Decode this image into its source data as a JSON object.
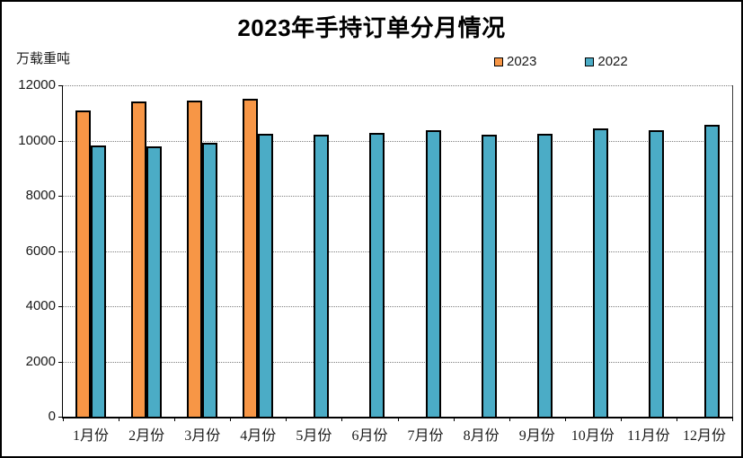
{
  "chart_data": {
    "type": "bar",
    "title": "2023年手持订单分月情况",
    "ylabel": "万载重吨",
    "xlabel": "",
    "categories": [
      "1月份",
      "2月份",
      "3月份",
      "4月份",
      "5月份",
      "6月份",
      "7月份",
      "8月份",
      "9月份",
      "10月份",
      "11月份",
      "12月份"
    ],
    "series": [
      {
        "name": "2023",
        "color": "#F79646",
        "values": [
          11100,
          11400,
          11450,
          11510,
          null,
          null,
          null,
          null,
          null,
          null,
          null,
          null
        ]
      },
      {
        "name": "2022",
        "color": "#4BACC6",
        "values": [
          9830,
          9780,
          9930,
          10250,
          10200,
          10270,
          10370,
          10210,
          10260,
          10430,
          10370,
          10560
        ]
      }
    ],
    "ylim": [
      0,
      12000
    ],
    "yticks": [
      0,
      2000,
      4000,
      6000,
      8000,
      10000,
      12000
    ],
    "grid": "horizontal-dotted",
    "legend_position": "top-right",
    "colors": {
      "bar_border": "#000000",
      "axis": "#000000",
      "gridline": "#808080",
      "background": "#ffffff"
    }
  }
}
